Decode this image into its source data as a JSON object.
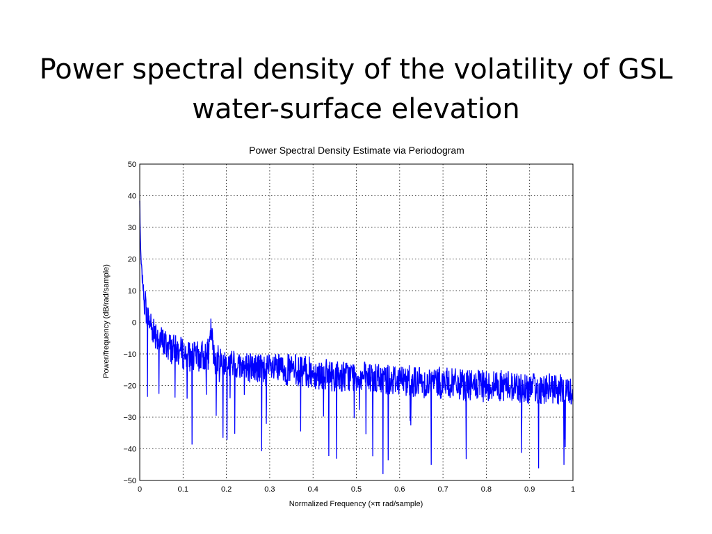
{
  "slide": {
    "title_line1": "Power spectral density of the volatility of GSL",
    "title_line2": "water-surface elevation"
  },
  "chart_data": {
    "type": "line",
    "title": "Power Spectral Density Estimate via Periodogram",
    "xlabel": "Normalized Frequency (×π rad/sample)",
    "ylabel": "Power/frequency (dB/rad/sample)",
    "xlim": [
      0,
      1
    ],
    "ylim": [
      -50,
      50
    ],
    "xticks": [
      0,
      0.1,
      0.2,
      0.3,
      0.4,
      0.5,
      0.6,
      0.7,
      0.8,
      0.9,
      1
    ],
    "xtick_labels": [
      "0",
      "0.1",
      "0.2",
      "0.3",
      "0.4",
      "0.5",
      "0.6",
      "0.7",
      "0.8",
      "0.9",
      "1"
    ],
    "yticks": [
      -50,
      -40,
      -30,
      -20,
      -10,
      0,
      10,
      20,
      30,
      40,
      50
    ],
    "ytick_labels": [
      "−50",
      "−40",
      "−30",
      "−20",
      "−10",
      "0",
      "10",
      "20",
      "30",
      "40",
      "50"
    ],
    "grid": true,
    "line_color": "#0000ff",
    "series": [
      {
        "x": [
          0,
          0.002,
          0.005,
          0.01,
          0.015,
          0.02,
          0.03,
          0.04,
          0.05,
          0.06,
          0.07,
          0.08,
          0.09,
          0.1,
          0.12,
          0.14,
          0.16,
          0.165,
          0.17,
          0.18,
          0.2,
          0.25,
          0.3,
          0.35,
          0.4,
          0.45,
          0.5,
          0.55,
          0.6,
          0.65,
          0.7,
          0.75,
          0.8,
          0.85,
          0.9,
          0.95,
          1.0
        ],
        "y": [
          38,
          22,
          15,
          8,
          4,
          1,
          -2,
          -4,
          -6,
          -7,
          -8,
          -9,
          -9,
          -10,
          -11,
          -11,
          -10,
          -2,
          -11,
          -12,
          -13,
          -14,
          -15,
          -15,
          -16,
          -17,
          -17,
          -18,
          -18,
          -19,
          -19,
          -20,
          -20,
          -20,
          -21,
          -21,
          -22
        ]
      }
    ]
  }
}
